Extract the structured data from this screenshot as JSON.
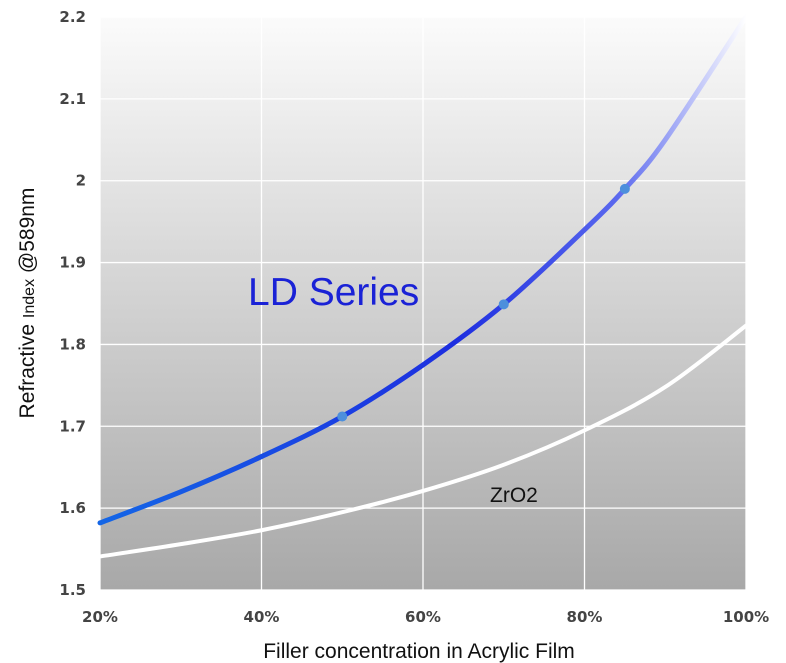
{
  "chart_data": {
    "type": "line",
    "xlabel": "Filler concentration in Acrylic Film",
    "ylabel_parts": [
      "Refractive ",
      "Index",
      " @589nm"
    ],
    "x_ticks": [
      "20%",
      "40%",
      "60%",
      "80%",
      "100%"
    ],
    "y_ticks": [
      "1.5",
      "1.6",
      "1.7",
      "1.8",
      "1.9",
      "2",
      "2.1",
      "2.2"
    ],
    "xlim": [
      20,
      100
    ],
    "ylim": [
      1.5,
      2.2
    ],
    "grid": true,
    "series": [
      {
        "key": "ld",
        "color": "#1a3fe0",
        "x": [
          20,
          30,
          40,
          50,
          60,
          70,
          80,
          85,
          90,
          100
        ],
        "y": [
          1.582,
          1.62,
          1.663,
          1.712,
          1.775,
          1.849,
          1.94,
          1.99,
          2.05,
          2.2
        ],
        "markers": [
          {
            "x": 50,
            "y": 1.712
          },
          {
            "x": 70,
            "y": 1.849
          },
          {
            "x": 85,
            "y": 1.99
          }
        ]
      },
      {
        "key": "zro2",
        "color": "#ffffff",
        "x": [
          20,
          30,
          40,
          50,
          60,
          70,
          80,
          90,
          100
        ],
        "y": [
          1.541,
          1.556,
          1.573,
          1.595,
          1.621,
          1.653,
          1.695,
          1.748,
          1.823
        ]
      }
    ],
    "annotations": {
      "ld_label": "LD Series",
      "zro2_label": "ZrO2"
    }
  }
}
